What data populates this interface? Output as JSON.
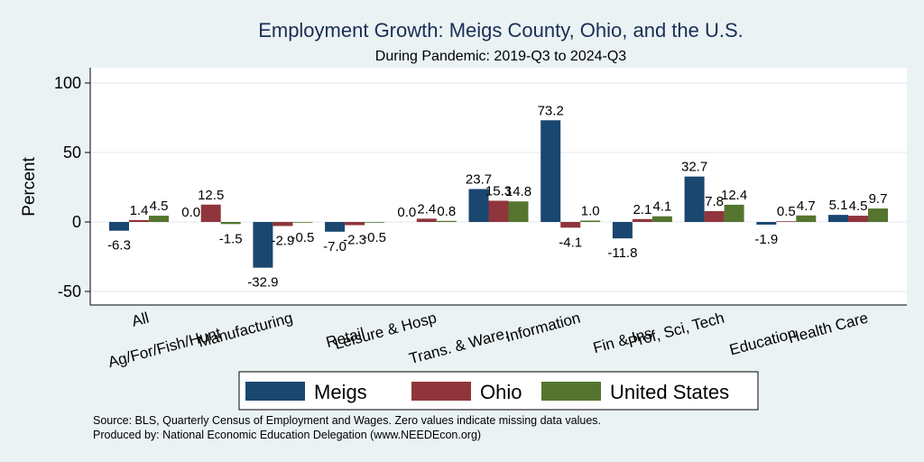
{
  "chart_data": {
    "type": "bar",
    "title": "Employment Growth: Meigs County, Ohio, and the U.S.",
    "subtitle": "During Pandemic: 2019-Q3 to 2024-Q3",
    "xlabel": "",
    "ylabel": "Percent",
    "ylim": [
      -60,
      110
    ],
    "yticks": [
      -50,
      0,
      50,
      100
    ],
    "grid": true,
    "legend_position": "bottom",
    "categories": [
      "All",
      "Ag/For/Fish/Hunt",
      "Manufacturing",
      "Retail",
      "Leisure & Hosp",
      "Trans. & Ware.",
      "Information",
      "Fin & Ins",
      "Prof, Sci, Tech",
      "Education",
      "Health Care"
    ],
    "series": [
      {
        "name": "Meigs",
        "color": "#1a476f",
        "values": [
          -6.3,
          0.0,
          -32.9,
          -7.0,
          0.0,
          23.7,
          73.2,
          -11.8,
          32.7,
          -1.9,
          5.1
        ]
      },
      {
        "name": "Ohio",
        "color": "#90353b",
        "values": [
          1.4,
          12.5,
          -2.9,
          -2.3,
          2.4,
          15.3,
          -4.1,
          2.1,
          7.8,
          0.5,
          4.5
        ]
      },
      {
        "name": "United States",
        "color": "#55752f",
        "values": [
          4.5,
          -1.5,
          -0.5,
          -0.5,
          0.8,
          14.8,
          1.0,
          4.1,
          12.4,
          4.7,
          9.7
        ]
      }
    ],
    "notes": [
      "Source: BLS, Quarterly Census of Employment and Wages. Zero values indicate missing data values.",
      "Produced by: National Economic Education Delegation (www.NEEDEcon.org)"
    ]
  }
}
